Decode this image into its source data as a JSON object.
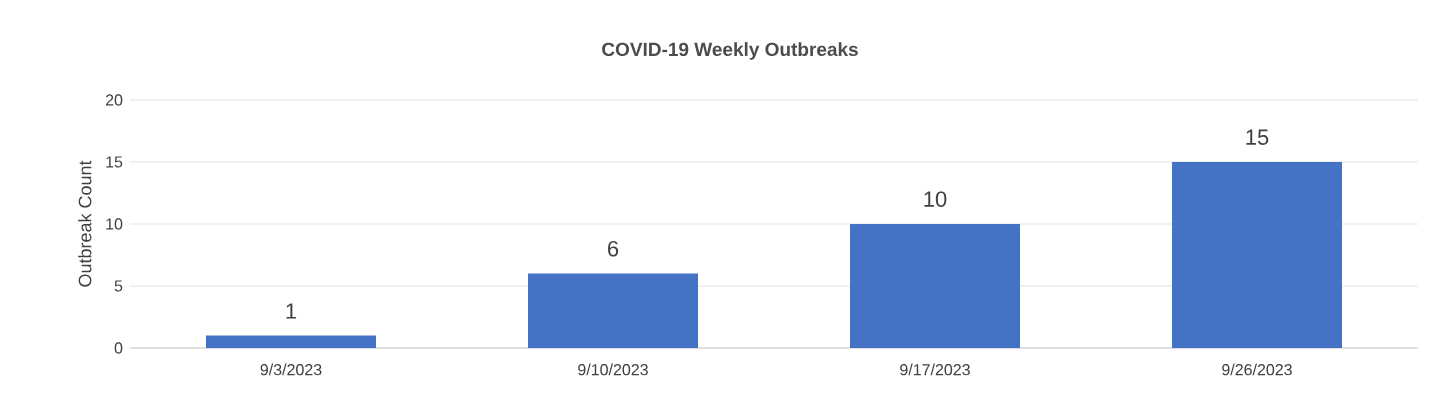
{
  "chart_data": {
    "type": "bar",
    "title": "COVID-19 Weekly Outbreaks",
    "ylabel": "Outbreak Count",
    "categories": [
      "9/3/2023",
      "9/10/2023",
      "9/17/2023",
      "9/26/2023"
    ],
    "values": [
      1,
      6,
      10,
      15
    ],
    "color": "#4472c4",
    "ylim": [
      0,
      20
    ],
    "yticks": [
      0,
      5,
      10,
      15,
      20
    ],
    "grid": "y",
    "data_labels": true
  }
}
